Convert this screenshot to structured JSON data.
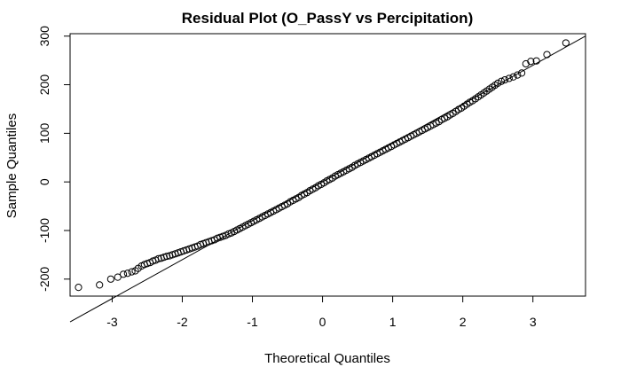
{
  "chart_data": {
    "type": "scatter",
    "title": "Residual Plot (O_PassY vs Percipitation)",
    "xlabel": "Theoretical Quantiles",
    "ylabel": "Sample Quantiles",
    "xlim": [
      -3.6,
      3.75
    ],
    "ylim": [
      -235,
      305
    ],
    "xticks": [
      -3,
      -2,
      -1,
      0,
      1,
      2,
      3
    ],
    "yticks": [
      -200,
      -100,
      0,
      100,
      200,
      300
    ],
    "grid": false,
    "legend": "none",
    "reference_line": {
      "intercept": 0,
      "slope": 80
    },
    "points": [
      [
        -3.48,
        -217
      ],
      [
        -3.18,
        -212
      ],
      [
        -3.02,
        -200
      ],
      [
        -2.92,
        -196
      ],
      [
        -2.84,
        -190
      ],
      [
        -2.78,
        -188
      ],
      [
        -2.72,
        -185
      ],
      [
        -2.67,
        -183
      ],
      [
        -2.63,
        -178
      ],
      [
        -2.58,
        -173
      ],
      [
        -2.54,
        -170
      ],
      [
        -2.5,
        -168
      ],
      [
        -2.46,
        -166
      ],
      [
        -2.42,
        -163
      ],
      [
        -2.38,
        -161
      ],
      [
        -2.34,
        -158
      ],
      [
        -2.3,
        -157
      ],
      [
        -2.26,
        -155
      ],
      [
        -2.22,
        -153
      ],
      [
        -2.18,
        -152
      ],
      [
        -2.14,
        -150
      ],
      [
        -2.1,
        -148
      ],
      [
        -2.06,
        -146
      ],
      [
        -2.02,
        -144
      ],
      [
        -1.98,
        -142
      ],
      [
        -1.94,
        -140
      ],
      [
        -1.9,
        -138
      ],
      [
        -1.86,
        -136
      ],
      [
        -1.82,
        -134
      ],
      [
        -1.78,
        -132
      ],
      [
        -1.74,
        -129
      ],
      [
        -1.7,
        -127
      ],
      [
        -1.66,
        -125
      ],
      [
        -1.62,
        -123
      ],
      [
        -1.58,
        -121
      ],
      [
        -1.54,
        -119
      ],
      [
        -1.5,
        -116
      ],
      [
        -1.46,
        -114
      ],
      [
        -1.42,
        -112
      ],
      [
        -1.38,
        -110
      ],
      [
        -1.34,
        -107
      ],
      [
        -1.3,
        -105
      ],
      [
        -1.26,
        -102
      ],
      [
        -1.22,
        -99
      ],
      [
        -1.18,
        -96
      ],
      [
        -1.14,
        -93
      ],
      [
        -1.1,
        -90
      ],
      [
        -1.06,
        -87
      ],
      [
        -1.02,
        -84
      ],
      [
        -0.98,
        -81
      ],
      [
        -0.94,
        -78
      ],
      [
        -0.9,
        -75
      ],
      [
        -0.86,
        -72
      ],
      [
        -0.82,
        -69
      ],
      [
        -0.78,
        -66
      ],
      [
        -0.74,
        -63
      ],
      [
        -0.7,
        -60
      ],
      [
        -0.66,
        -57
      ],
      [
        -0.62,
        -54
      ],
      [
        -0.58,
        -51
      ],
      [
        -0.54,
        -48
      ],
      [
        -0.5,
        -45
      ],
      [
        -0.46,
        -41
      ],
      [
        -0.42,
        -38
      ],
      [
        -0.38,
        -35
      ],
      [
        -0.34,
        -32
      ],
      [
        -0.3,
        -28
      ],
      [
        -0.26,
        -25
      ],
      [
        -0.22,
        -22
      ],
      [
        -0.18,
        -18
      ],
      [
        -0.14,
        -15
      ],
      [
        -0.1,
        -12
      ],
      [
        -0.06,
        -8
      ],
      [
        -0.02,
        -5
      ],
      [
        0.02,
        -2
      ],
      [
        0.06,
        2
      ],
      [
        0.1,
        5
      ],
      [
        0.14,
        8
      ],
      [
        0.18,
        12
      ],
      [
        0.22,
        15
      ],
      [
        0.26,
        18
      ],
      [
        0.3,
        21
      ],
      [
        0.34,
        24
      ],
      [
        0.38,
        27
      ],
      [
        0.42,
        30
      ],
      [
        0.46,
        34
      ],
      [
        0.5,
        37
      ],
      [
        0.54,
        40
      ],
      [
        0.58,
        43
      ],
      [
        0.62,
        46
      ],
      [
        0.66,
        49
      ],
      [
        0.7,
        52
      ],
      [
        0.74,
        55
      ],
      [
        0.78,
        58
      ],
      [
        0.82,
        61
      ],
      [
        0.86,
        64
      ],
      [
        0.9,
        67
      ],
      [
        0.94,
        70
      ],
      [
        0.98,
        73
      ],
      [
        1.02,
        76
      ],
      [
        1.06,
        79
      ],
      [
        1.1,
        82
      ],
      [
        1.14,
        85
      ],
      [
        1.18,
        88
      ],
      [
        1.22,
        91
      ],
      [
        1.26,
        94
      ],
      [
        1.3,
        97
      ],
      [
        1.34,
        100
      ],
      [
        1.38,
        103
      ],
      [
        1.42,
        106
      ],
      [
        1.46,
        109
      ],
      [
        1.5,
        112
      ],
      [
        1.54,
        115
      ],
      [
        1.58,
        118
      ],
      [
        1.62,
        121
      ],
      [
        1.66,
        124
      ],
      [
        1.7,
        128
      ],
      [
        1.74,
        131
      ],
      [
        1.78,
        134
      ],
      [
        1.82,
        138
      ],
      [
        1.86,
        141
      ],
      [
        1.9,
        145
      ],
      [
        1.94,
        149
      ],
      [
        1.98,
        152
      ],
      [
        2.02,
        156
      ],
      [
        2.06,
        160
      ],
      [
        2.1,
        164
      ],
      [
        2.14,
        167
      ],
      [
        2.18,
        171
      ],
      [
        2.22,
        175
      ],
      [
        2.26,
        179
      ],
      [
        2.3,
        183
      ],
      [
        2.34,
        187
      ],
      [
        2.38,
        191
      ],
      [
        2.42,
        195
      ],
      [
        2.46,
        199
      ],
      [
        2.5,
        203
      ],
      [
        2.55,
        207
      ],
      [
        2.6,
        210
      ],
      [
        2.66,
        213
      ],
      [
        2.72,
        216
      ],
      [
        2.78,
        220
      ],
      [
        2.84,
        224
      ],
      [
        2.9,
        243
      ],
      [
        2.97,
        248
      ],
      [
        3.05,
        249
      ],
      [
        3.2,
        262
      ],
      [
        3.47,
        286
      ]
    ]
  }
}
